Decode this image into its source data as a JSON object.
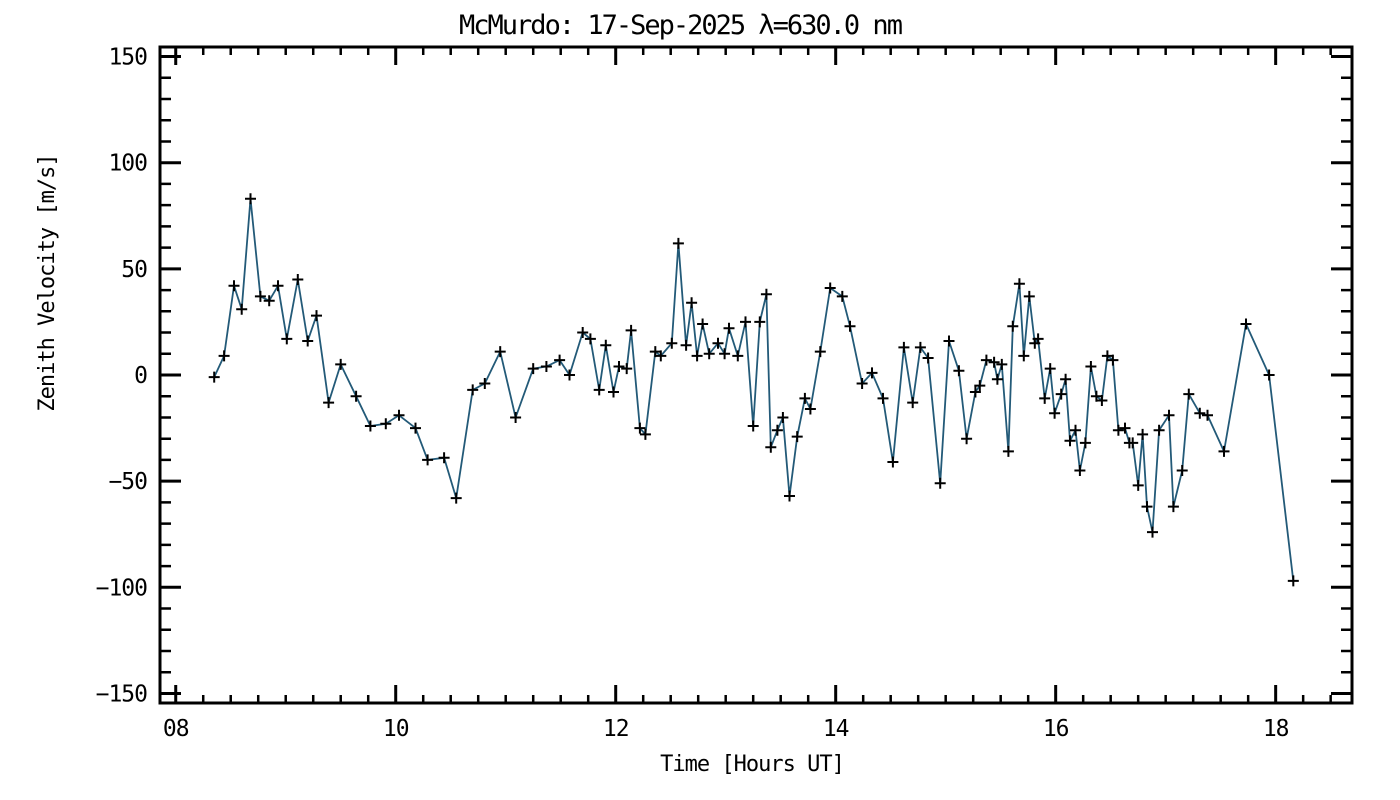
{
  "page": {
    "background": "#ffffff"
  },
  "chart_data": {
    "type": "line",
    "title": "McMurdo: 17-Sep-2025 λ=630.0 nm",
    "xlabel": "Time [Hours UT]",
    "ylabel": "Zenith Velocity [m/s]",
    "xlim": [
      7.857,
      18.694
    ],
    "ylim": [
      -154.5,
      154.5
    ],
    "x_ticks": [
      {
        "value": 8,
        "label": "08"
      },
      {
        "value": 10,
        "label": "10"
      },
      {
        "value": 12,
        "label": "12"
      },
      {
        "value": 14,
        "label": "14"
      },
      {
        "value": 16,
        "label": "16"
      },
      {
        "value": 18,
        "label": "18"
      }
    ],
    "x_minor_step": 0.25,
    "y_ticks": [
      {
        "value": 150,
        "label": "150"
      },
      {
        "value": 100,
        "label": "100"
      },
      {
        "value": 50,
        "label": "50"
      },
      {
        "value": 0,
        "label": "0"
      },
      {
        "value": -50,
        "label": "−50"
      },
      {
        "value": -100,
        "label": "−100"
      },
      {
        "value": -150,
        "label": "−150"
      }
    ],
    "y_minor_step": 10,
    "grid": false,
    "marker": "plus",
    "line_color": "#235a78",
    "marker_color": "#000000",
    "axis_color": "#000000",
    "points": [
      [
        8.35,
        -1
      ],
      [
        8.44,
        9
      ],
      [
        8.53,
        42
      ],
      [
        8.6,
        31
      ],
      [
        8.68,
        83
      ],
      [
        8.77,
        37
      ],
      [
        8.85,
        35
      ],
      [
        8.93,
        42
      ],
      [
        9.01,
        17
      ],
      [
        9.11,
        45
      ],
      [
        9.2,
        16
      ],
      [
        9.28,
        28
      ],
      [
        9.39,
        -13
      ],
      [
        9.5,
        5
      ],
      [
        9.64,
        -10
      ],
      [
        9.77,
        -24
      ],
      [
        9.91,
        -23
      ],
      [
        10.03,
        -19
      ],
      [
        10.18,
        -25
      ],
      [
        10.29,
        -40
      ],
      [
        10.44,
        -39
      ],
      [
        10.55,
        -58
      ],
      [
        10.7,
        -7
      ],
      [
        10.81,
        -4
      ],
      [
        10.95,
        11
      ],
      [
        11.09,
        -20
      ],
      [
        11.25,
        3
      ],
      [
        11.37,
        4
      ],
      [
        11.49,
        7
      ],
      [
        11.58,
        0
      ],
      [
        11.7,
        20
      ],
      [
        11.77,
        17
      ],
      [
        11.85,
        -7
      ],
      [
        11.91,
        14
      ],
      [
        11.98,
        -8
      ],
      [
        12.03,
        4
      ],
      [
        12.1,
        3
      ],
      [
        12.14,
        21
      ],
      [
        12.22,
        -25
      ],
      [
        12.27,
        -28
      ],
      [
        12.36,
        11
      ],
      [
        12.41,
        9
      ],
      [
        12.51,
        15
      ],
      [
        12.57,
        62
      ],
      [
        12.64,
        14
      ],
      [
        12.69,
        34
      ],
      [
        12.74,
        9
      ],
      [
        12.79,
        24
      ],
      [
        12.85,
        10
      ],
      [
        12.93,
        15
      ],
      [
        12.99,
        10
      ],
      [
        13.03,
        22
      ],
      [
        13.11,
        9
      ],
      [
        13.18,
        25
      ],
      [
        13.25,
        -24
      ],
      [
        13.31,
        25
      ],
      [
        13.37,
        38
      ],
      [
        13.41,
        -34
      ],
      [
        13.47,
        -26
      ],
      [
        13.52,
        -20
      ],
      [
        13.58,
        -57
      ],
      [
        13.65,
        -29
      ],
      [
        13.72,
        -11
      ],
      [
        13.77,
        -16
      ],
      [
        13.86,
        11
      ],
      [
        13.95,
        41
      ],
      [
        14.06,
        37
      ],
      [
        14.13,
        23
      ],
      [
        14.24,
        -4
      ],
      [
        14.33,
        1
      ],
      [
        14.43,
        -11
      ],
      [
        14.52,
        -41
      ],
      [
        14.62,
        13
      ],
      [
        14.7,
        -13
      ],
      [
        14.77,
        13
      ],
      [
        14.84,
        8
      ],
      [
        14.95,
        -51
      ],
      [
        15.03,
        16
      ],
      [
        15.12,
        2
      ],
      [
        15.19,
        -30
      ],
      [
        15.27,
        -8
      ],
      [
        15.31,
        -5
      ],
      [
        15.37,
        7
      ],
      [
        15.44,
        6
      ],
      [
        15.47,
        -2
      ],
      [
        15.51,
        5
      ],
      [
        15.57,
        -36
      ],
      [
        15.61,
        23
      ],
      [
        15.67,
        43
      ],
      [
        15.71,
        9
      ],
      [
        15.76,
        37
      ],
      [
        15.81,
        15
      ],
      [
        15.84,
        17
      ],
      [
        15.9,
        -11
      ],
      [
        15.95,
        3
      ],
      [
        15.99,
        -18
      ],
      [
        16.05,
        -9
      ],
      [
        16.09,
        -2
      ],
      [
        16.13,
        -31
      ],
      [
        16.18,
        -26
      ],
      [
        16.22,
        -45
      ],
      [
        16.27,
        -32
      ],
      [
        16.32,
        4
      ],
      [
        16.37,
        -10
      ],
      [
        16.42,
        -12
      ],
      [
        16.47,
        9
      ],
      [
        16.52,
        7
      ],
      [
        16.57,
        -26
      ],
      [
        16.63,
        -25
      ],
      [
        16.67,
        -32
      ],
      [
        16.7,
        -32
      ],
      [
        16.75,
        -52
      ],
      [
        16.79,
        -28
      ],
      [
        16.83,
        -62
      ],
      [
        16.88,
        -74
      ],
      [
        16.94,
        -26
      ],
      [
        17.03,
        -19
      ],
      [
        17.07,
        -62
      ],
      [
        17.15,
        -45
      ],
      [
        17.21,
        -9
      ],
      [
        17.31,
        -18
      ],
      [
        17.38,
        -19
      ],
      [
        17.53,
        -36
      ],
      [
        17.73,
        24
      ],
      [
        17.94,
        0
      ],
      [
        18.16,
        -97
      ]
    ]
  }
}
